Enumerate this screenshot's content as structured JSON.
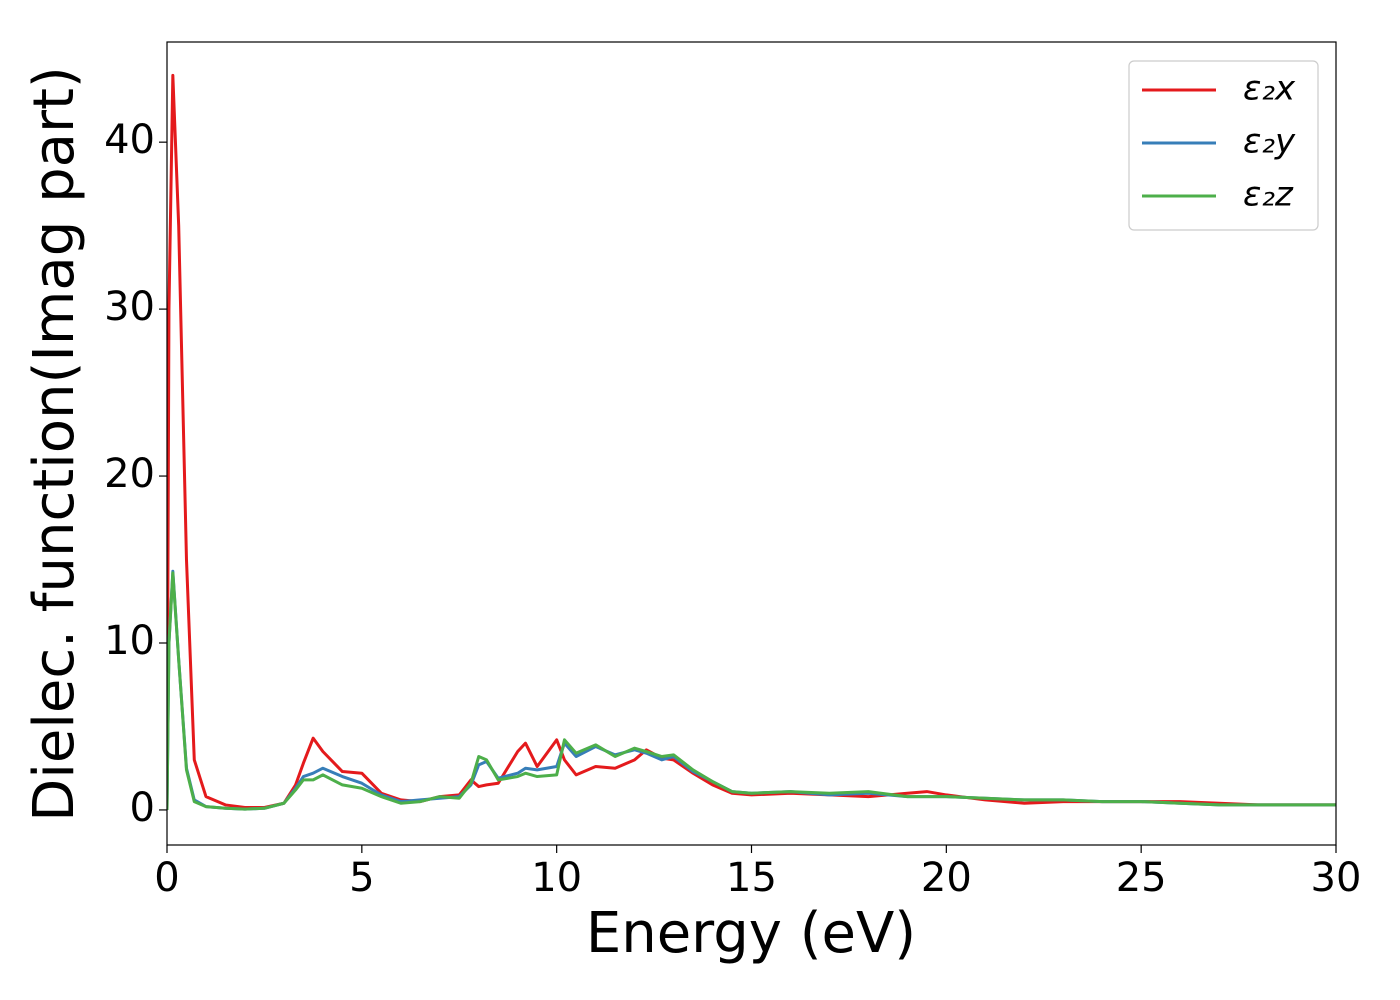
{
  "chart_data": {
    "type": "line",
    "x_label": "Energy (eV)",
    "y_label": "Dielec. function(Imag part)",
    "x": [
      0,
      0.05,
      0.15,
      0.3,
      0.5,
      0.7,
      1.0,
      1.5,
      2,
      2.5,
      3,
      3.3,
      3.5,
      3.75,
      4,
      4.5,
      5,
      5.5,
      6,
      6.5,
      7,
      7.5,
      7.8,
      8,
      8.2,
      8.5,
      9,
      9.2,
      9.5,
      10,
      10.2,
      10.5,
      11,
      11.5,
      12,
      12.3,
      12.7,
      13,
      13.5,
      14,
      14.5,
      15,
      16,
      17,
      18,
      19,
      19.5,
      20,
      21,
      22,
      23,
      24,
      25,
      26,
      27,
      28,
      29,
      30
    ],
    "series": [
      {
        "name": "ε₂x",
        "color": "#e41a1c",
        "values": [
          0,
          30,
          44,
          35,
          15,
          3,
          0.8,
          0.3,
          0.15,
          0.15,
          0.4,
          1.5,
          2.8,
          4.3,
          3.5,
          2.3,
          2.2,
          1.0,
          0.6,
          0.5,
          0.8,
          0.9,
          1.8,
          1.4,
          1.5,
          1.6,
          3.5,
          4.0,
          2.6,
          4.2,
          3.0,
          2.1,
          2.6,
          2.5,
          3.0,
          3.6,
          3.1,
          3.0,
          2.2,
          1.5,
          1.0,
          0.9,
          1.0,
          0.9,
          0.8,
          1.0,
          1.1,
          0.9,
          0.6,
          0.4,
          0.5,
          0.5,
          0.5,
          0.5,
          0.4,
          0.3,
          0.3,
          0.3
        ]
      },
      {
        "name": "ε₂y",
        "color": "#377eb8",
        "values": [
          0,
          10,
          14.3,
          9,
          2.5,
          0.6,
          0.2,
          0.1,
          0.05,
          0.1,
          0.4,
          1.3,
          2.0,
          2.2,
          2.5,
          2.0,
          1.6,
          0.9,
          0.5,
          0.6,
          0.7,
          0.8,
          1.5,
          2.7,
          2.9,
          1.9,
          2.2,
          2.5,
          2.4,
          2.6,
          4.0,
          3.2,
          3.8,
          3.3,
          3.6,
          3.4,
          3.0,
          3.2,
          2.3,
          1.7,
          1.1,
          1.0,
          1.1,
          0.9,
          1.0,
          0.8,
          0.8,
          0.8,
          0.7,
          0.6,
          0.6,
          0.5,
          0.5,
          0.4,
          0.3,
          0.3,
          0.3,
          0.3
        ]
      },
      {
        "name": "ε₂z",
        "color": "#4daf4a",
        "values": [
          0,
          10,
          14.2,
          9,
          2.4,
          0.5,
          0.2,
          0.1,
          0.05,
          0.1,
          0.4,
          1.2,
          1.8,
          1.8,
          2.1,
          1.5,
          1.3,
          0.8,
          0.4,
          0.5,
          0.8,
          0.7,
          1.6,
          3.2,
          3.0,
          1.8,
          2.0,
          2.2,
          2.0,
          2.1,
          4.2,
          3.4,
          3.9,
          3.2,
          3.7,
          3.5,
          3.2,
          3.3,
          2.4,
          1.7,
          1.1,
          1.0,
          1.1,
          1.0,
          1.1,
          0.8,
          0.8,
          0.8,
          0.7,
          0.6,
          0.6,
          0.5,
          0.5,
          0.4,
          0.3,
          0.3,
          0.3,
          0.3
        ]
      }
    ],
    "xlim": [
      0,
      30
    ],
    "ylim": [
      -2.1,
      46.0
    ],
    "xticks": [
      0,
      5,
      10,
      15,
      20,
      25,
      30
    ],
    "yticks": [
      0,
      10,
      20,
      30,
      40
    ],
    "legend": "upper right"
  }
}
